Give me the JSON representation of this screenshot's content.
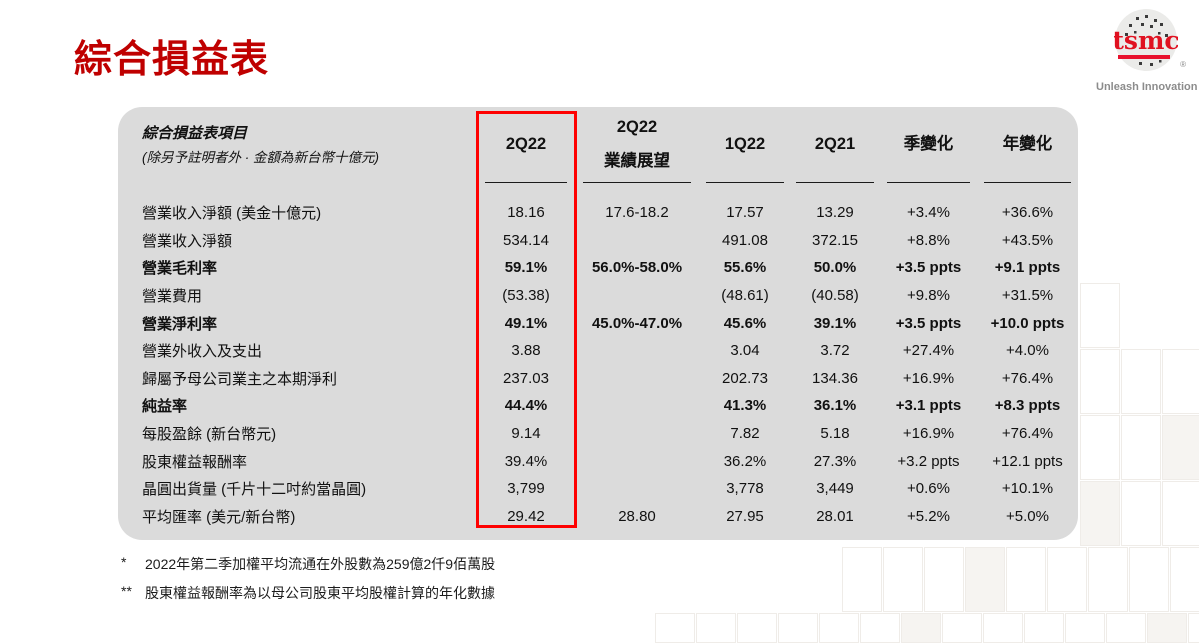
{
  "slide": {
    "title": "綜合損益表"
  },
  "logo": {
    "brand": "tsmc",
    "registered_mark": "®",
    "tagline": "Unleash Innovation"
  },
  "table": {
    "header": {
      "item_title": "綜合損益表項目",
      "item_subtitle": "(除另予註明者外 · 金額為新台幣十億元)",
      "columns": [
        {
          "line1": "2Q22",
          "line2": ""
        },
        {
          "line1": "2Q22",
          "line2": "業績展望"
        },
        {
          "line1": "1Q22",
          "line2": ""
        },
        {
          "line1": "2Q21",
          "line2": ""
        },
        {
          "line1": "季變化",
          "line2": ""
        },
        {
          "line1": "年變化",
          "line2": ""
        }
      ]
    },
    "rows": [
      {
        "label": "營業收入淨額 (美金十億元)",
        "q2_22": "18.16",
        "outlook": "17.6-18.2",
        "q1_22": "17.57",
        "q2_21": "13.29",
        "qoq": "+3.4%",
        "yoy": "+36.6%",
        "bold": false
      },
      {
        "label": "營業收入淨額",
        "q2_22": "534.14",
        "outlook": "",
        "q1_22": "491.08",
        "q2_21": "372.15",
        "qoq": "+8.8%",
        "yoy": "+43.5%",
        "bold": false
      },
      {
        "label": "營業毛利率",
        "q2_22": "59.1%",
        "outlook": "56.0%-58.0%",
        "q1_22": "55.6%",
        "q2_21": "50.0%",
        "qoq": "+3.5 ppts",
        "yoy": "+9.1 ppts",
        "bold": true
      },
      {
        "label": "營業費用",
        "q2_22": "(53.38)",
        "outlook": "",
        "q1_22": "(48.61)",
        "q2_21": "(40.58)",
        "qoq": "+9.8%",
        "yoy": "+31.5%",
        "bold": false
      },
      {
        "label": "營業淨利率",
        "q2_22": "49.1%",
        "outlook": "45.0%-47.0%",
        "q1_22": "45.6%",
        "q2_21": "39.1%",
        "qoq": "+3.5 ppts",
        "yoy": "+10.0 ppts",
        "bold": true
      },
      {
        "label": "營業外收入及支出",
        "q2_22": "3.88",
        "outlook": "",
        "q1_22": "3.04",
        "q2_21": "3.72",
        "qoq": "+27.4%",
        "yoy": "+4.0%",
        "bold": false
      },
      {
        "label": "歸屬予母公司業主之本期淨利",
        "q2_22": "237.03",
        "outlook": "",
        "q1_22": "202.73",
        "q2_21": "134.36",
        "qoq": "+16.9%",
        "yoy": "+76.4%",
        "bold": false
      },
      {
        "label": "純益率",
        "q2_22": "44.4%",
        "outlook": "",
        "q1_22": "41.3%",
        "q2_21": "36.1%",
        "qoq": "+3.1 ppts",
        "yoy": "+8.3 ppts",
        "bold": true
      },
      {
        "label": "每股盈餘 (新台幣元)",
        "q2_22": "9.14",
        "outlook": "",
        "q1_22": "7.82",
        "q2_21": "5.18",
        "qoq": "+16.9%",
        "yoy": "+76.4%",
        "bold": false
      },
      {
        "label": "股東權益報酬率",
        "q2_22": "39.4%",
        "outlook": "",
        "q1_22": "36.2%",
        "q2_21": "27.3%",
        "qoq": "+3.2 ppts",
        "yoy": "+12.1 ppts",
        "bold": false
      },
      {
        "label": "晶圓出貨量 (千片十二吋約當晶圓)",
        "q2_22": "3,799",
        "outlook": "",
        "q1_22": "3,778",
        "q2_21": "3,449",
        "qoq": "+0.6%",
        "yoy": "+10.1%",
        "bold": false
      },
      {
        "label": "平均匯率 (美元/新台幣)",
        "q2_22": "29.42",
        "outlook": "28.80",
        "q1_22": "27.95",
        "q2_21": "28.01",
        "qoq": "+5.2%",
        "yoy": "+5.0%",
        "bold": false
      }
    ]
  },
  "footnotes": [
    {
      "marker": "*",
      "text": "2022年第二季加權平均流通在外股數為259億2仟9佰萬股"
    },
    {
      "marker": "**",
      "text": "股東權益報酬率為以母公司股東平均股權計算的年化數據"
    }
  ],
  "colors": {
    "title_red": "#bf0000",
    "highlight_box_red": "#fe0101",
    "panel_gray": "#dbdbdb",
    "logo_red": "#e01120",
    "tagline_gray": "#8c8c8c"
  }
}
